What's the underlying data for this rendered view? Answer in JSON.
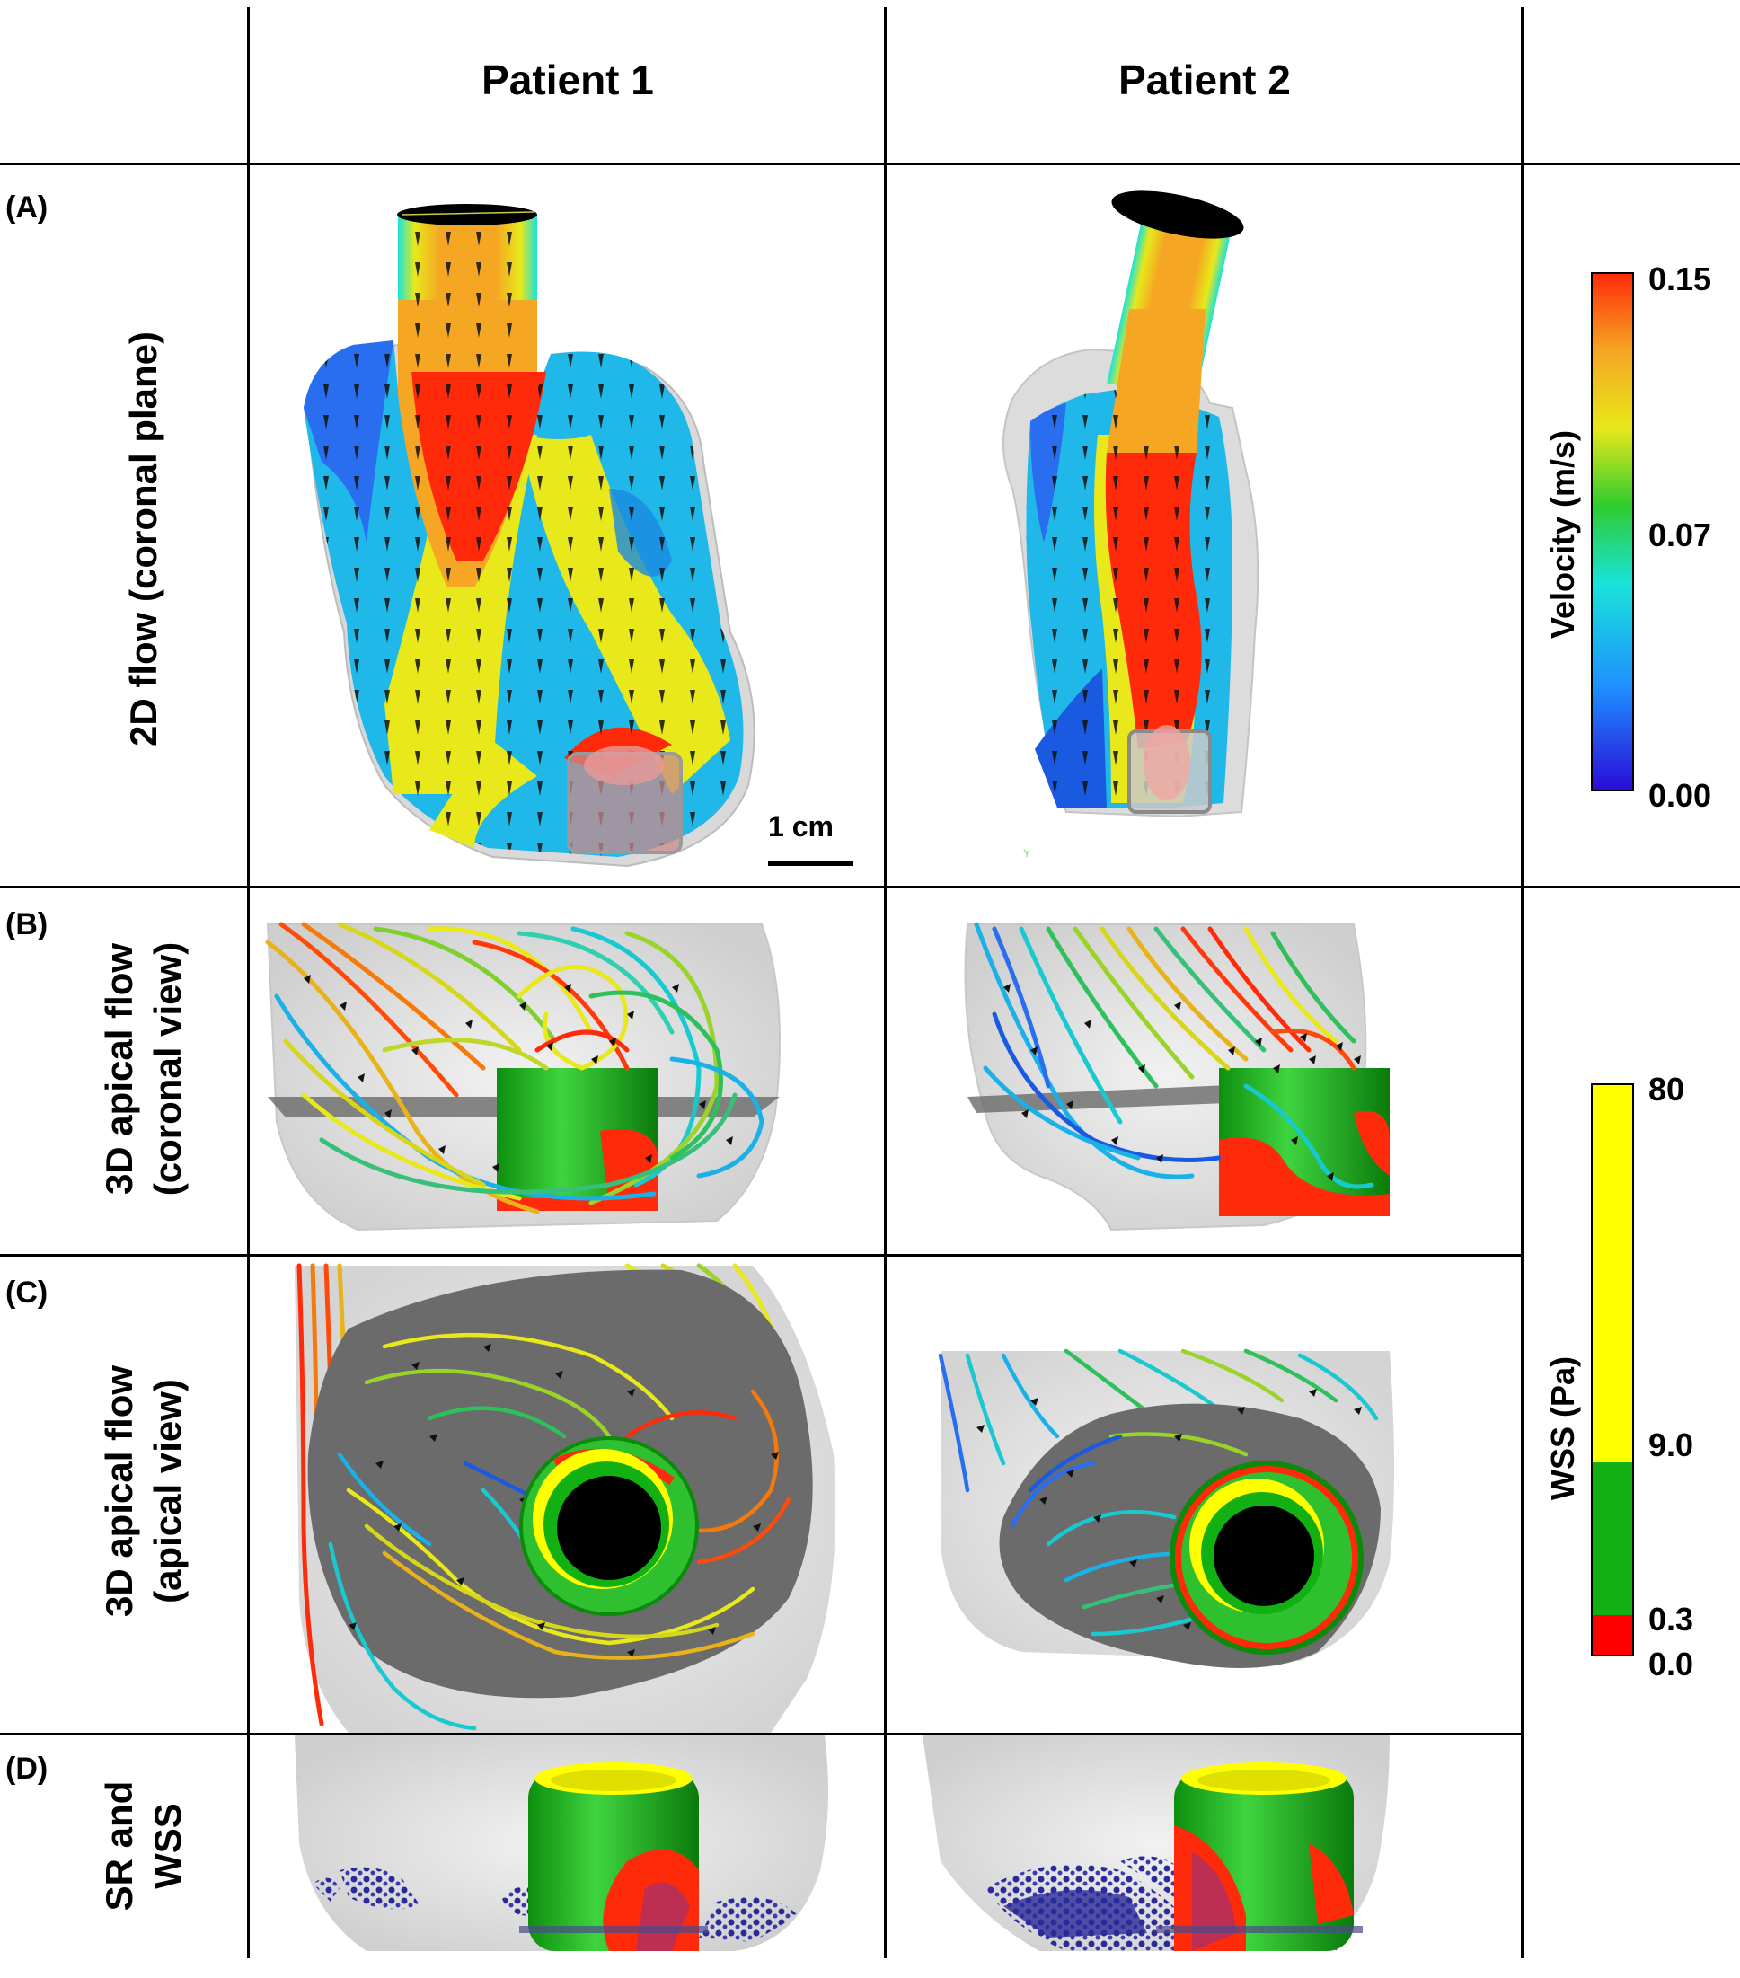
{
  "columns": [
    "Patient 1",
    "Patient 2"
  ],
  "rows": [
    {
      "letter": "(A)",
      "title_lines": [
        "2D flow (coronal plane)"
      ]
    },
    {
      "letter": "(B)",
      "title_lines": [
        "3D apical flow",
        "(coronal view)"
      ]
    },
    {
      "letter": "(C)",
      "title_lines": [
        "3D apical flow",
        "(apical view)"
      ]
    },
    {
      "letter": "(D)",
      "title_lines": [
        "SR and",
        "WSS"
      ]
    }
  ],
  "scale_bar": "1 cm",
  "axis_mark": "Y",
  "velocity_colorbar": {
    "title": "Velocity (m/s)",
    "ticks": [
      "0.15",
      "0.07",
      "0.00"
    ],
    "colors": [
      "#2b0bd8",
      "#1e90ff",
      "#19e3d9",
      "#2ecc2e",
      "#e8e81a",
      "#f5a623",
      "#ff2a0a"
    ]
  },
  "wss_colorbar": {
    "title": "WSS (Pa)",
    "ticks": [
      "80",
      "9.0",
      "0.3",
      "0.0"
    ],
    "colors": {
      "high": "#ffff00",
      "mid": "#12b012",
      "low": "#ff0000"
    }
  }
}
